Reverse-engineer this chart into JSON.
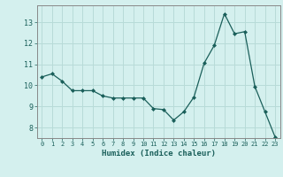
{
  "x": [
    0,
    1,
    2,
    3,
    4,
    5,
    6,
    7,
    8,
    9,
    10,
    11,
    12,
    13,
    14,
    15,
    16,
    17,
    18,
    19,
    20,
    21,
    22,
    23
  ],
  "y": [
    10.4,
    10.55,
    10.2,
    9.75,
    9.75,
    9.75,
    9.5,
    9.4,
    9.4,
    9.4,
    9.4,
    8.9,
    8.85,
    8.35,
    8.75,
    9.45,
    11.05,
    11.9,
    13.4,
    12.45,
    12.55,
    9.95,
    8.75,
    7.55
  ],
  "line_color": "#1a5f5a",
  "marker": "D",
  "markersize": 2.0,
  "linewidth": 0.9,
  "bg_color": "#d4f0ee",
  "grid_color": "#b8dbd8",
  "xlabel": "Humidex (Indice chaleur)",
  "xlim": [
    -0.5,
    23.5
  ],
  "ylim": [
    7.5,
    13.8
  ],
  "yticks": [
    8,
    9,
    10,
    11,
    12,
    13
  ],
  "xtick_labels": [
    "0",
    "1",
    "2",
    "3",
    "4",
    "5",
    "6",
    "7",
    "8",
    "9",
    "10",
    "11",
    "12",
    "13",
    "14",
    "15",
    "16",
    "17",
    "18",
    "19",
    "20",
    "21",
    "22",
    "23"
  ]
}
